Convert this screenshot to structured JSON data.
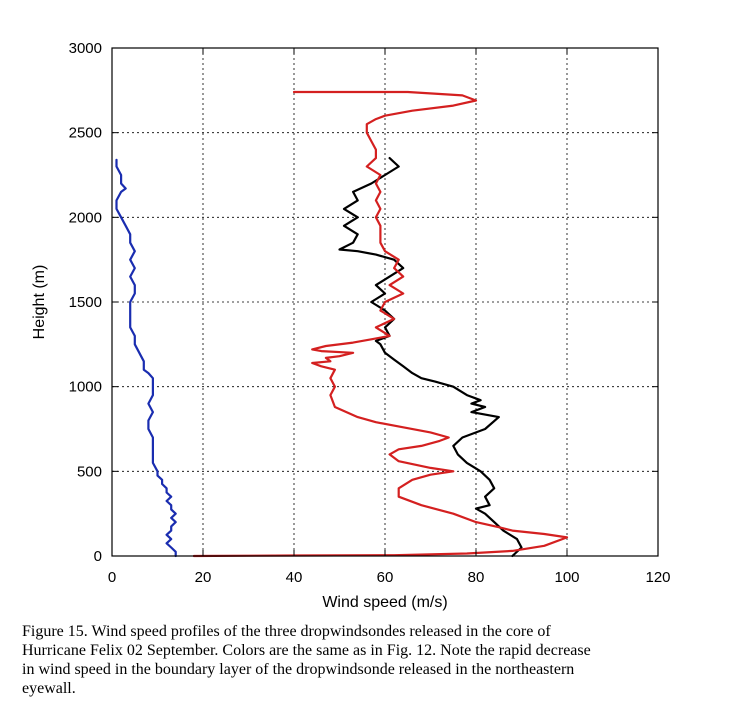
{
  "chart_data": {
    "type": "line",
    "xlabel": "Wind speed (m/s)",
    "ylabel": "Height (m)",
    "xlim": [
      0,
      120
    ],
    "ylim": [
      0,
      3000
    ],
    "xticks": [
      0,
      20,
      40,
      60,
      80,
      100,
      120
    ],
    "yticks": [
      0,
      500,
      1000,
      1500,
      2000,
      2500,
      3000
    ],
    "grid": true,
    "series": [
      {
        "color": "#1a2db0",
        "points": [
          [
            14,
            0
          ],
          [
            14,
            25
          ],
          [
            13,
            50
          ],
          [
            12,
            75
          ],
          [
            13,
            100
          ],
          [
            12,
            125
          ],
          [
            13,
            150
          ],
          [
            13,
            175
          ],
          [
            14,
            200
          ],
          [
            13,
            225
          ],
          [
            14,
            250
          ],
          [
            13,
            275
          ],
          [
            13,
            300
          ],
          [
            12,
            325
          ],
          [
            13,
            350
          ],
          [
            12,
            375
          ],
          [
            12,
            400
          ],
          [
            11,
            425
          ],
          [
            11,
            450
          ],
          [
            10,
            475
          ],
          [
            10,
            500
          ],
          [
            9,
            550
          ],
          [
            9,
            600
          ],
          [
            9,
            650
          ],
          [
            9,
            700
          ],
          [
            8,
            750
          ],
          [
            8,
            800
          ],
          [
            9,
            850
          ],
          [
            8,
            900
          ],
          [
            9,
            950
          ],
          [
            9,
            1000
          ],
          [
            9,
            1050
          ],
          [
            8,
            1080
          ],
          [
            7,
            1100
          ],
          [
            7,
            1150
          ],
          [
            6,
            1200
          ],
          [
            5,
            1250
          ],
          [
            5,
            1300
          ],
          [
            4,
            1350
          ],
          [
            4,
            1400
          ],
          [
            4,
            1450
          ],
          [
            4,
            1500
          ],
          [
            5,
            1550
          ],
          [
            5,
            1600
          ],
          [
            4,
            1650
          ],
          [
            5,
            1700
          ],
          [
            4,
            1750
          ],
          [
            5,
            1800
          ],
          [
            4,
            1850
          ],
          [
            4,
            1900
          ],
          [
            3,
            1950
          ],
          [
            2,
            2000
          ],
          [
            1,
            2050
          ],
          [
            1,
            2100
          ],
          [
            2,
            2150
          ],
          [
            3,
            2170
          ],
          [
            2,
            2200
          ],
          [
            2,
            2250
          ],
          [
            1,
            2300
          ],
          [
            1,
            2340
          ]
        ]
      },
      {
        "color": "#000000",
        "points": [
          [
            88,
            0
          ],
          [
            90,
            50
          ],
          [
            89,
            100
          ],
          [
            86,
            150
          ],
          [
            84,
            200
          ],
          [
            82,
            250
          ],
          [
            80,
            280
          ],
          [
            83,
            300
          ],
          [
            82,
            350
          ],
          [
            84,
            400
          ],
          [
            83,
            450
          ],
          [
            81,
            500
          ],
          [
            78,
            550
          ],
          [
            76,
            600
          ],
          [
            75,
            650
          ],
          [
            77,
            700
          ],
          [
            82,
            750
          ],
          [
            85,
            820
          ],
          [
            79,
            850
          ],
          [
            82,
            880
          ],
          [
            79,
            900
          ],
          [
            81,
            920
          ],
          [
            78,
            950
          ],
          [
            75,
            1000
          ],
          [
            71,
            1030
          ],
          [
            68,
            1050
          ],
          [
            66,
            1080
          ],
          [
            64,
            1120
          ],
          [
            62,
            1160
          ],
          [
            60,
            1200
          ],
          [
            59,
            1250
          ],
          [
            58,
            1270
          ],
          [
            61,
            1300
          ],
          [
            60,
            1350
          ],
          [
            62,
            1400
          ],
          [
            60,
            1450
          ],
          [
            57,
            1500
          ],
          [
            60,
            1550
          ],
          [
            58,
            1600
          ],
          [
            61,
            1650
          ],
          [
            64,
            1700
          ],
          [
            62,
            1750
          ],
          [
            58,
            1780
          ],
          [
            54,
            1800
          ],
          [
            50,
            1810
          ],
          [
            53,
            1850
          ],
          [
            54,
            1900
          ],
          [
            51,
            1950
          ],
          [
            54,
            2000
          ],
          [
            51,
            2050
          ],
          [
            54,
            2100
          ],
          [
            53,
            2150
          ],
          [
            57,
            2200
          ],
          [
            60,
            2250
          ],
          [
            63,
            2300
          ],
          [
            61,
            2350
          ]
        ]
      },
      {
        "color": "#d42020",
        "points": [
          [
            18,
            0
          ],
          [
            40,
            3
          ],
          [
            62,
            5
          ],
          [
            78,
            15
          ],
          [
            88,
            30
          ],
          [
            95,
            60
          ],
          [
            100,
            110
          ],
          [
            95,
            130
          ],
          [
            88,
            150
          ],
          [
            85,
            170
          ],
          [
            80,
            200
          ],
          [
            75,
            250
          ],
          [
            68,
            300
          ],
          [
            63,
            350
          ],
          [
            63,
            400
          ],
          [
            66,
            450
          ],
          [
            70,
            480
          ],
          [
            75,
            500
          ],
          [
            70,
            520
          ],
          [
            63,
            560
          ],
          [
            61,
            600
          ],
          [
            63,
            630
          ],
          [
            68,
            650
          ],
          [
            72,
            680
          ],
          [
            74,
            700
          ],
          [
            70,
            730
          ],
          [
            64,
            760
          ],
          [
            58,
            790
          ],
          [
            54,
            820
          ],
          [
            49,
            880
          ],
          [
            48,
            950
          ],
          [
            49,
            1000
          ],
          [
            48,
            1050
          ],
          [
            49,
            1100
          ],
          [
            46,
            1120
          ],
          [
            44,
            1140
          ],
          [
            48,
            1150
          ],
          [
            47,
            1170
          ],
          [
            50,
            1180
          ],
          [
            53,
            1200
          ],
          [
            46,
            1210
          ],
          [
            44,
            1220
          ],
          [
            47,
            1240
          ],
          [
            53,
            1260
          ],
          [
            57,
            1280
          ],
          [
            61,
            1300
          ],
          [
            58,
            1350
          ],
          [
            62,
            1400
          ],
          [
            59,
            1450
          ],
          [
            60,
            1500
          ],
          [
            64,
            1550
          ],
          [
            61,
            1600
          ],
          [
            64,
            1650
          ],
          [
            62,
            1700
          ],
          [
            63,
            1750
          ],
          [
            60,
            1800
          ],
          [
            59,
            1850
          ],
          [
            59,
            1900
          ],
          [
            59,
            1950
          ],
          [
            58,
            2000
          ],
          [
            59,
            2050
          ],
          [
            58,
            2100
          ],
          [
            59,
            2150
          ],
          [
            58,
            2200
          ],
          [
            59,
            2250
          ],
          [
            56,
            2300
          ],
          [
            58,
            2350
          ],
          [
            58,
            2400
          ],
          [
            57,
            2450
          ],
          [
            56,
            2500
          ],
          [
            56,
            2550
          ],
          [
            58,
            2580
          ],
          [
            60,
            2600
          ],
          [
            66,
            2630
          ],
          [
            75,
            2660
          ],
          [
            80,
            2690
          ],
          [
            77,
            2720
          ],
          [
            65,
            2740
          ],
          [
            40,
            2740
          ]
        ]
      }
    ]
  },
  "caption": {
    "line1": "Figure 15.  Wind speed profiles of the three dropwindsondes released in the core of",
    "line2": "Hurricane Felix 02 September.  Colors are the same as in Fig. 12.  Note the rapid decrease",
    "line3": "in wind speed in the boundary layer of the dropwindsonde released in the northeastern",
    "line4": "eyewall."
  }
}
